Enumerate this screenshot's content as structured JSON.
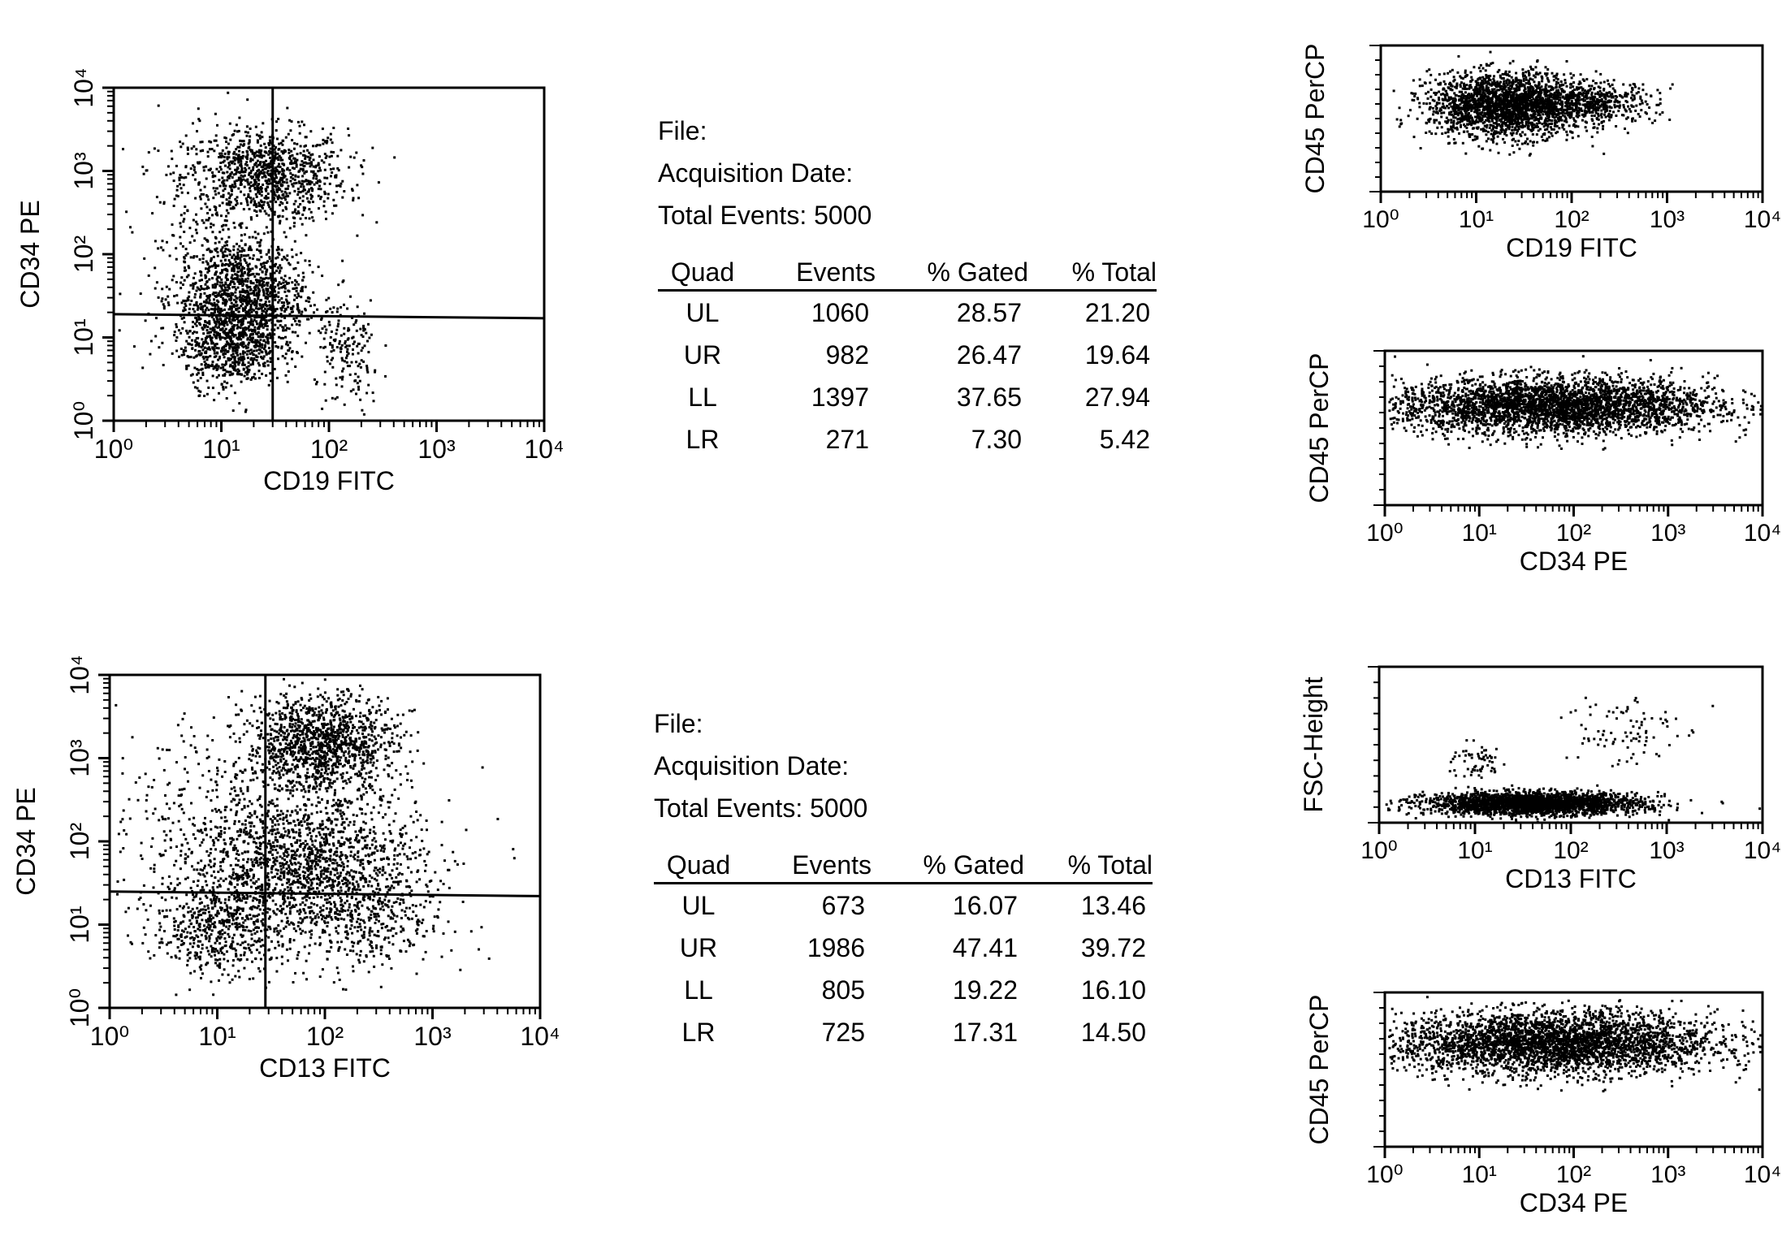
{
  "chart_data": [
    {
      "type": "scatter",
      "xlabel": "CD19 FITC",
      "ylabel": "CD34 PE",
      "x_scale": "log",
      "y_scale": "log",
      "xlim": [
        1,
        10000
      ],
      "ylim": [
        1,
        10000
      ],
      "x_ticks": [
        1,
        10,
        100,
        1000,
        10000
      ],
      "y_ticks": [
        1,
        10,
        100,
        1000,
        10000
      ],
      "quadrant_x": 30,
      "quadrant_y": [
        19,
        17
      ],
      "populations": [
        {
          "cx": 25,
          "cy": 900,
          "sx": 0.38,
          "sy": 0.28,
          "n": 1000
        },
        {
          "cx": 15,
          "cy": 30,
          "sx": 0.3,
          "sy": 0.38,
          "n": 1300
        },
        {
          "cx": 12,
          "cy": 8,
          "sx": 0.22,
          "sy": 0.25,
          "n": 500
        },
        {
          "cx": 150,
          "cy": 6,
          "sx": 0.15,
          "sy": 0.35,
          "n": 160
        },
        {
          "cx": 6,
          "cy": 200,
          "sx": 0.35,
          "sy": 0.7,
          "n": 140
        }
      ]
    },
    {
      "type": "scatter",
      "xlabel": "CD13 FITC",
      "ylabel": "CD34 PE",
      "x_scale": "log",
      "y_scale": "log",
      "xlim": [
        1,
        10000
      ],
      "ylim": [
        1,
        10000
      ],
      "x_ticks": [
        1,
        10,
        100,
        1000,
        10000
      ],
      "y_ticks": [
        1,
        10,
        100,
        1000,
        10000
      ],
      "quadrant_x": 28,
      "quadrant_y": [
        25,
        22
      ],
      "populations": [
        {
          "cx": 90,
          "cy": 1500,
          "sx": 0.35,
          "sy": 0.3,
          "n": 1300
        },
        {
          "cx": 60,
          "cy": 60,
          "sx": 0.55,
          "sy": 0.42,
          "n": 1500
        },
        {
          "cx": 10,
          "cy": 10,
          "sx": 0.3,
          "sy": 0.3,
          "n": 550
        },
        {
          "cx": 200,
          "cy": 12,
          "sx": 0.4,
          "sy": 0.35,
          "n": 450
        },
        {
          "cx": 8,
          "cy": 300,
          "sx": 0.45,
          "sy": 0.6,
          "n": 200
        }
      ]
    },
    {
      "type": "scatter",
      "xlabel": "CD19 FITC",
      "ylabel": "CD45 PerCP",
      "x_scale": "log",
      "xlim": [
        1,
        10000
      ],
      "ylim": [
        0,
        10
      ],
      "x_ticks": [
        1,
        10,
        100,
        1000,
        10000
      ],
      "populations": [
        {
          "cx": 20,
          "cy": 6.0,
          "sx": 0.4,
          "sy": 1.1,
          "n": 2200
        },
        {
          "cx": 150,
          "cy": 6.2,
          "sx": 0.35,
          "sy": 0.7,
          "n": 500
        }
      ]
    },
    {
      "type": "scatter",
      "xlabel": "CD34 PE",
      "ylabel": "CD45 PerCP",
      "x_scale": "log",
      "xlim": [
        1,
        10000
      ],
      "ylim": [
        0,
        10
      ],
      "x_ticks": [
        1,
        10,
        100,
        1000,
        10000
      ],
      "populations": [
        {
          "cx": 60,
          "cy": 6.5,
          "sx": 0.85,
          "sy": 0.9,
          "n": 3500
        }
      ]
    },
    {
      "type": "scatter",
      "xlabel": "CD13 FITC",
      "ylabel": "FSC-Height",
      "x_scale": "log",
      "xlim": [
        1,
        10000
      ],
      "ylim": [
        0,
        10
      ],
      "x_ticks": [
        1,
        10,
        100,
        1000,
        10000
      ],
      "populations": [
        {
          "cx": 40,
          "cy": 1.3,
          "sx": 0.55,
          "sy": 0.35,
          "n": 2600
        },
        {
          "cx": 300,
          "cy": 6.0,
          "sx": 0.3,
          "sy": 1.3,
          "n": 90
        },
        {
          "cx": 10,
          "cy": 4.0,
          "sx": 0.15,
          "sy": 0.6,
          "n": 60
        }
      ]
    },
    {
      "type": "scatter",
      "xlabel": "CD34 PE",
      "ylabel": "CD45 PerCP",
      "x_scale": "log",
      "xlim": [
        1,
        10000
      ],
      "ylim": [
        0,
        10
      ],
      "x_ticks": [
        1,
        10,
        100,
        1000,
        10000
      ],
      "populations": [
        {
          "cx": 60,
          "cy": 6.8,
          "sx": 0.85,
          "sy": 1.0,
          "n": 3500
        }
      ]
    }
  ],
  "info_panels": [
    {
      "file_label": "File:",
      "acq_label": "Acquisition Date:",
      "total_label": "Total Events: 5000",
      "headers": [
        "Quad",
        "Events",
        "% Gated",
        "% Total"
      ],
      "rows": [
        [
          "UL",
          "1060",
          "28.57",
          "21.20"
        ],
        [
          "UR",
          "982",
          "26.47",
          "19.64"
        ],
        [
          "LL",
          "1397",
          "37.65",
          "27.94"
        ],
        [
          "LR",
          "271",
          "7.30",
          "5.42"
        ]
      ]
    },
    {
      "file_label": "File:",
      "acq_label": "Acquisition Date:",
      "total_label": "Total Events: 5000",
      "headers": [
        "Quad",
        "Events",
        "% Gated",
        "% Total"
      ],
      "rows": [
        [
          "UL",
          "673",
          "16.07",
          "13.46"
        ],
        [
          "UR",
          "1986",
          "47.41",
          "39.72"
        ],
        [
          "LL",
          "805",
          "19.22",
          "16.10"
        ],
        [
          "LR",
          "725",
          "17.31",
          "14.50"
        ]
      ]
    }
  ]
}
